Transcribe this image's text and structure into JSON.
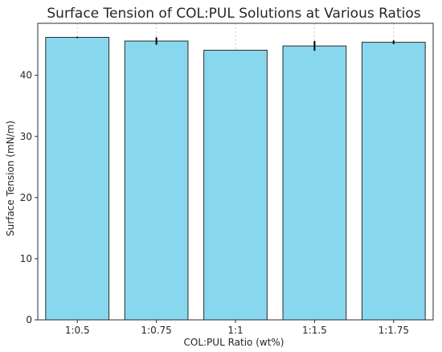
{
  "chart_data": {
    "type": "bar",
    "title": "Surface Tension of COL:PUL Solutions at Various Ratios",
    "xlabel": "COL:PUL Ratio (wt%)",
    "ylabel": "Surface Tension (mN/m)",
    "categories": [
      "1:0.5",
      "1:0.75",
      "1:1",
      "1:1.5",
      "1:1.75"
    ],
    "values": [
      46.2,
      45.6,
      44.1,
      44.8,
      45.4
    ],
    "errors": [
      0.1,
      0.6,
      0.0,
      0.8,
      0.3
    ],
    "ylim": [
      0,
      48.5
    ],
    "yticks": [
      0,
      10,
      20,
      30,
      40
    ],
    "grid": "vertical dotted",
    "colors": {
      "bar_fill": "#87d7ee",
      "bar_edge": "#2b2b2b",
      "error_bar": "#000000",
      "grid": "#c8c8c8",
      "axis": "#2b2b2b"
    }
  }
}
